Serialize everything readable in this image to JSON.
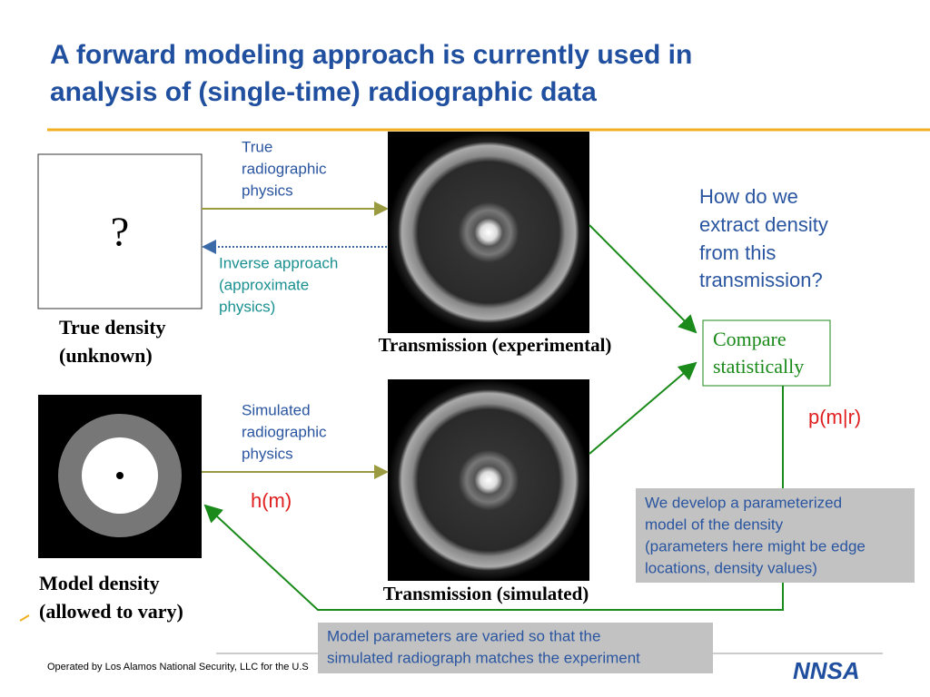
{
  "title": {
    "lines": [
      "A forward modeling approach is currently used in",
      "analysis of (single-time) radiographic data"
    ]
  },
  "unknown_box": {
    "symbol": "?",
    "caption": [
      "True density",
      "(unknown)"
    ]
  },
  "true_physics": [
    "True",
    "radiographic",
    "physics"
  ],
  "inverse": [
    "Inverse approach",
    "(approximate",
    "physics)"
  ],
  "experimental_caption": "Transmission (experimental)",
  "question": [
    "How do we",
    "extract density",
    "from this",
    "transmission?"
  ],
  "compare": [
    "Compare",
    "statistically"
  ],
  "posterior": "p(m|r)",
  "model_caption": [
    "Model density",
    "(allowed to vary)"
  ],
  "simulated_physics": [
    "Simulated",
    "radiographic",
    "physics"
  ],
  "forward_op": "h(m)",
  "simulated_caption": "Transmission (simulated)",
  "note_param": [
    "We develop a parameterized",
    "model of the density",
    "(parameters here might be edge",
    "locations, density values)"
  ],
  "note_vary": [
    "Model parameters are varied so that the",
    "simulated radiograph matches the experiment"
  ],
  "footer": "Operated by Los Alamos National Security, LLC for the U.S",
  "logo": "NNSA"
}
